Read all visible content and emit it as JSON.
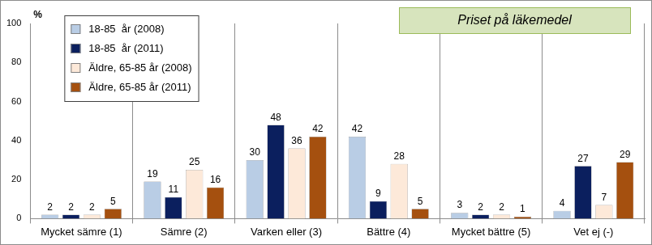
{
  "chart_data": {
    "type": "bar",
    "title": "Priset på läkemedel",
    "y_label": "%",
    "categories": [
      "Mycket sämre (1)",
      "Sämre (2)",
      "Varken eller (3)",
      "Bättre (4)",
      "Mycket bättre (5)",
      "Vet ej (-)"
    ],
    "series": [
      {
        "name": "18-85  år (2008)",
        "color": "#b9cde5",
        "values": [
          2,
          19,
          30,
          42,
          3,
          4
        ]
      },
      {
        "name": "18-85  år (2011)",
        "color": "#0b1f5e",
        "values": [
          2,
          11,
          48,
          9,
          2,
          27
        ]
      },
      {
        "name": "Äldre, 65-85 år (2008)",
        "color": "#fde9d9",
        "values": [
          2,
          25,
          36,
          28,
          2,
          7
        ]
      },
      {
        "name": "Äldre, 65-85 år (2011)",
        "color": "#a5500f",
        "values": [
          5,
          16,
          42,
          5,
          1,
          29
        ]
      }
    ],
    "ylim": [
      0,
      100
    ],
    "yticks": [
      0,
      20,
      40,
      60,
      80,
      100
    ],
    "grid": true,
    "legend": "top-left",
    "data_labels": true
  }
}
